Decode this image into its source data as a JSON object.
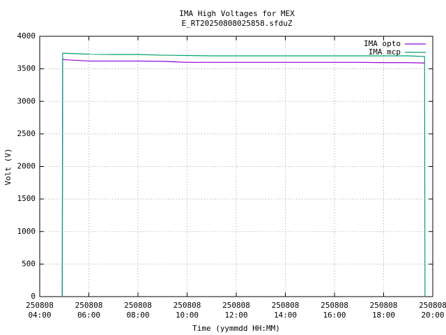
{
  "chart_data": {
    "type": "line",
    "title": "IMA High Voltages for MEX",
    "subtitle": "E_RT20250808025858.sfduZ",
    "xlabel": "Time (yymmdd HH:MM)",
    "ylabel": "Volt (V)",
    "x": [
      "250808 04:55",
      "250808 04:56",
      "250808 05:00",
      "250808 06:00",
      "250808 07:00",
      "250808 08:00",
      "250808 09:00",
      "250808 10:00",
      "250808 11:00",
      "250808 12:00",
      "250808 13:00",
      "250808 14:00",
      "250808 15:00",
      "250808 16:00",
      "250808 17:00",
      "250808 18:00",
      "250808 19:00",
      "250808 19:40",
      "250808 19:41"
    ],
    "series": [
      {
        "name": "IMA opto",
        "color": "#9400d3",
        "values": [
          0,
          3650,
          3640,
          3620,
          3620,
          3620,
          3615,
          3600,
          3600,
          3600,
          3600,
          3600,
          3600,
          3600,
          3600,
          3595,
          3595,
          3590,
          null
        ]
      },
      {
        "name": "IMA mcp",
        "color": "#009e73",
        "values": [
          0,
          3740,
          3740,
          3725,
          3720,
          3720,
          3710,
          3705,
          3700,
          3700,
          3700,
          3700,
          3700,
          3700,
          3700,
          3700,
          3700,
          3690,
          0
        ]
      }
    ],
    "xlim": [
      "250808 04:00",
      "250808 20:00"
    ],
    "xticks": [
      "250808 04:00",
      "250808 06:00",
      "250808 08:00",
      "250808 10:00",
      "250808 12:00",
      "250808 14:00",
      "250808 16:00",
      "250808 18:00",
      "250808 20:00"
    ],
    "ylim": [
      0,
      4000
    ],
    "yticks": [
      0,
      500,
      1000,
      1500,
      2000,
      2500,
      3000,
      3500,
      4000
    ],
    "grid": true,
    "legend": "top-right"
  }
}
